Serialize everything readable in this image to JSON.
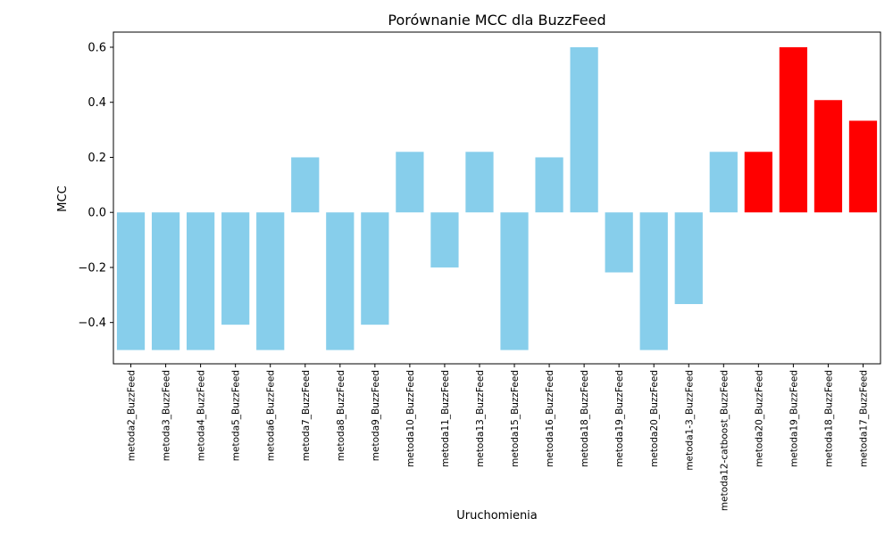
{
  "chart_data": {
    "type": "bar",
    "title": "Porównanie MCC dla BuzzFeed",
    "xlabel": "Uruchomienia",
    "ylabel": "MCC",
    "ylim": [
      -0.55,
      0.655
    ],
    "yticks": [
      -0.4,
      -0.2,
      0.0,
      0.2,
      0.4,
      0.6
    ],
    "ytick_labels": [
      "−0.4",
      "−0.2",
      "0.0",
      "0.2",
      "0.4",
      "0.6"
    ],
    "grid": false,
    "colors": {
      "default": "#87CEEB",
      "highlight": "#FF0000"
    },
    "categories": [
      "metoda2_BuzzFeed",
      "metoda3_BuzzFeed",
      "metoda4_BuzzFeed",
      "metoda5_BuzzFeed",
      "metoda6_BuzzFeed",
      "metoda7_BuzzFeed",
      "metoda8_BuzzFeed",
      "metoda9_BuzzFeed",
      "metoda10_BuzzFeed",
      "metoda11_BuzzFeed",
      "metoda13_BuzzFeed",
      "metoda15_BuzzFeed",
      "metoda16_BuzzFeed",
      "metoda18_BuzzFeed",
      "metoda19_BuzzFeed",
      "metoda20_BuzzFeed",
      "metoda1-3_BuzzFeed",
      "metoda12-catboost_BuzzFeed",
      "metoda20_BuzzFeed",
      "metoda19_BuzzFeed",
      "metoda18_BuzzFeed",
      "metoda17_BuzzFeed"
    ],
    "values": [
      -0.5,
      -0.5,
      -0.5,
      -0.408,
      -0.5,
      0.2,
      -0.5,
      -0.408,
      0.22,
      -0.2,
      0.22,
      -0.5,
      0.2,
      0.6,
      -0.218,
      -0.5,
      -0.333,
      0.22,
      0.22,
      0.6,
      0.408,
      0.333
    ],
    "highlighted": [
      false,
      false,
      false,
      false,
      false,
      false,
      false,
      false,
      false,
      false,
      false,
      false,
      false,
      false,
      false,
      false,
      false,
      false,
      true,
      true,
      true,
      true
    ]
  }
}
